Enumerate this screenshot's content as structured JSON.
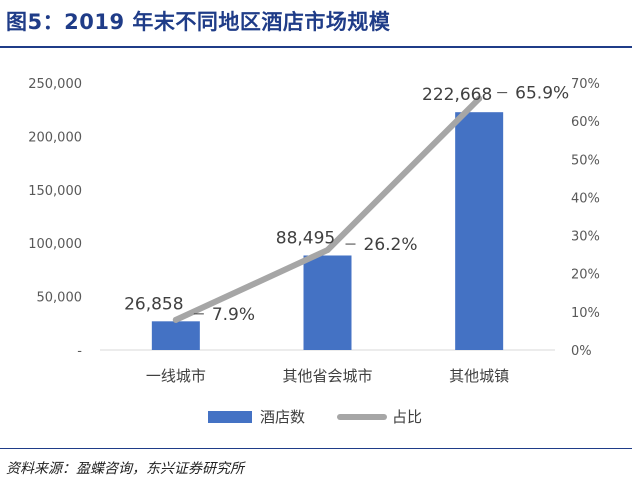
{
  "figure": {
    "title": "图5：2019 年末不同地区酒店市场规模",
    "source": "资料来源：盈蝶咨询，东兴证券研究所"
  },
  "colors": {
    "title": "#1f3c88",
    "bar": "#4472c4",
    "line": "#a6a6a6"
  },
  "chart_data": {
    "type": "bar+line",
    "categories": [
      "一线城市",
      "其他省会城市",
      "其他城镇"
    ],
    "series": [
      {
        "name": "酒店数",
        "type": "bar",
        "axis": "left",
        "values": [
          26858,
          88495,
          222668
        ],
        "labels": [
          "26,858",
          "88,495",
          "222,668"
        ]
      },
      {
        "name": "占比",
        "type": "line",
        "axis": "right",
        "values": [
          7.9,
          26.2,
          65.9
        ],
        "labels": [
          "7.9%",
          "26.2%",
          "65.9%"
        ]
      }
    ],
    "left_axis": {
      "ylim": [
        0,
        250000
      ],
      "ticks": [
        0,
        50000,
        100000,
        150000,
        200000,
        250000
      ],
      "tick_labels": [
        "-",
        "50,000",
        "100,000",
        "150,000",
        "200,000",
        "250,000"
      ]
    },
    "right_axis": {
      "ylim": [
        0,
        70
      ],
      "ticks": [
        0,
        10,
        20,
        30,
        40,
        50,
        60,
        70
      ],
      "tick_labels": [
        "0%",
        "10%",
        "20%",
        "30%",
        "40%",
        "50%",
        "60%",
        "70%"
      ]
    },
    "grid": false,
    "legend": "bottom"
  }
}
